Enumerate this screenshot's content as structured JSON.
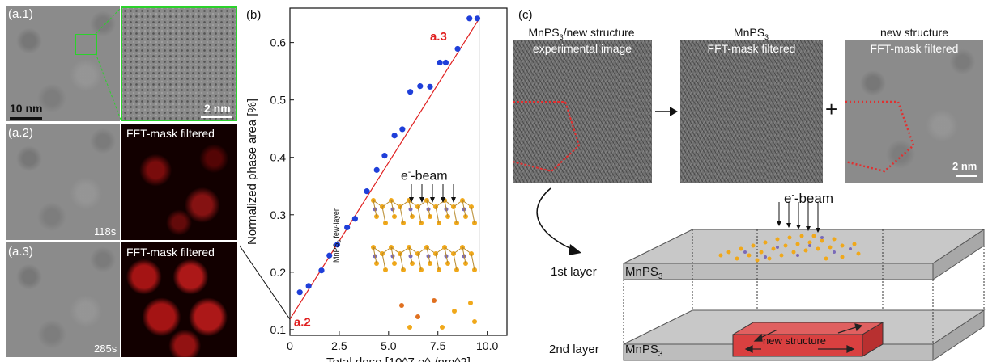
{
  "panel_a": {
    "a1_label": "(a.1)",
    "a2_label": "(a.2)",
    "a3_label": "(a.3)",
    "scale_large": "10 nm",
    "scale_zoom": "2 nm",
    "fft_title": "FFT-mask filtered",
    "a2_time": "118s",
    "a3_time": "285s"
  },
  "panel_b": {
    "label": "(b)",
    "inset_beam": "e",
    "inset_beam_sup": "-",
    "inset_beam_suffix": "-beam",
    "inset_side": "MnPS",
    "inset_side_sub": "3",
    "inset_side_suffix": " few-layer",
    "point_a2": "a.2",
    "point_a3": "a.3"
  },
  "panel_c": {
    "label": "(c)",
    "col1_title_pre": "MnPS",
    "col1_title_sub": "3",
    "col1_title_post": "/new structure",
    "col1_sub": "experimental image",
    "col2_title_pre": "MnPS",
    "col2_title_sub": "3",
    "col2_sub": "FFT-mask filtered",
    "col3_title": "new structure",
    "col3_sub": "FFT-mask filtered",
    "plus": "+",
    "scale": "2 nm",
    "beam": "e",
    "beam_sup": "-",
    "beam_suffix": "-beam",
    "layer1": "1st layer",
    "layer2": "2nd layer",
    "box1_pre": "MnPS",
    "box1_sub": "3",
    "box2_pre": "MnPS",
    "box2_sub": "3",
    "new_structure": "new structure"
  },
  "colors": {
    "accent_green": "#2bd22b",
    "marker_blue": "#1f3fd9",
    "fit_red": "#e02020",
    "dotted_red": "#e03030",
    "block_red": "#d94040"
  },
  "chart_data": {
    "type": "scatter",
    "title": "",
    "xlabel": "Total dose [10^7 e^-/nm^2]",
    "ylabel": "Normalized phase area [%]",
    "xlim": [
      0,
      11
    ],
    "ylim": [
      0.09,
      0.66
    ],
    "xticks": [
      "0",
      "2.5",
      "5.0",
      "7.5",
      "10.0"
    ],
    "yticks": [
      "0.1",
      "0.2",
      "0.3",
      "0.4",
      "0.5",
      "0.6"
    ],
    "series": [
      {
        "x": [
          0.5,
          0.95,
          1.6,
          2.0,
          2.4,
          2.9,
          3.3,
          3.9,
          4.4,
          4.8,
          5.3,
          5.7,
          6.1,
          6.6,
          7.1,
          7.6,
          7.9,
          8.5,
          9.1,
          9.5
        ],
        "y": [
          0.165,
          0.176,
          0.203,
          0.229,
          0.248,
          0.278,
          0.293,
          0.341,
          0.378,
          0.403,
          0.438,
          0.449,
          0.514,
          0.524,
          0.523,
          0.565,
          0.565,
          0.589,
          0.642,
          0.642
        ]
      }
    ],
    "fit_line": {
      "x": [
        0,
        9.6
      ],
      "y": [
        0.118,
        0.642
      ]
    },
    "annotations": [
      {
        "text": "a.2",
        "x": 0.2,
        "y": 0.106
      },
      {
        "text": "a.3",
        "x": 7.1,
        "y": 0.604
      }
    ]
  }
}
